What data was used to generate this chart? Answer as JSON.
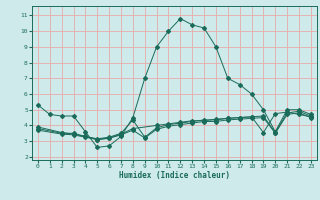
{
  "xlabel": "Humidex (Indice chaleur)",
  "bg_color": "#ceeaea",
  "grid_color": "#e8aaaa",
  "line_color": "#1a6b5a",
  "xlim": [
    -0.5,
    23.5
  ],
  "ylim": [
    1.8,
    11.6
  ],
  "xticks": [
    0,
    1,
    2,
    3,
    4,
    5,
    6,
    7,
    8,
    9,
    10,
    11,
    12,
    13,
    14,
    15,
    16,
    17,
    18,
    19,
    20,
    21,
    22,
    23
  ],
  "yticks": [
    2,
    3,
    4,
    5,
    6,
    7,
    8,
    9,
    10,
    11
  ],
  "line1_x": [
    0,
    1,
    2,
    3,
    4,
    5,
    6,
    7,
    8,
    9,
    10,
    11,
    12,
    13,
    14,
    15,
    16,
    17,
    18,
    19,
    20,
    21,
    22,
    23
  ],
  "line1_y": [
    5.3,
    4.7,
    4.6,
    4.6,
    3.6,
    2.6,
    2.7,
    3.3,
    4.5,
    7.0,
    9.0,
    10.0,
    10.8,
    10.4,
    10.2,
    9.0,
    7.0,
    6.6,
    6.0,
    5.0,
    3.6,
    5.0,
    5.0,
    4.7
  ],
  "line2_x": [
    0,
    2,
    3,
    4,
    5,
    6,
    7,
    8,
    9,
    10,
    11,
    12,
    13,
    14,
    15,
    16,
    17,
    18,
    19,
    20,
    21,
    22,
    23
  ],
  "line2_y": [
    3.9,
    3.55,
    3.45,
    3.3,
    3.15,
    3.25,
    3.5,
    4.35,
    3.25,
    3.85,
    4.05,
    4.15,
    4.25,
    4.35,
    4.35,
    4.45,
    4.5,
    4.55,
    4.6,
    3.55,
    4.8,
    4.9,
    4.6
  ],
  "line3_x": [
    0,
    2,
    3,
    4,
    5,
    6,
    7,
    8,
    10,
    11,
    12,
    13,
    14,
    15,
    16,
    17,
    18,
    19,
    20,
    21,
    22,
    23
  ],
  "line3_y": [
    3.8,
    3.5,
    3.5,
    3.3,
    3.1,
    3.2,
    3.45,
    3.8,
    4.0,
    4.1,
    4.2,
    4.3,
    4.3,
    4.4,
    4.45,
    4.5,
    4.55,
    3.55,
    4.75,
    4.85,
    4.7,
    4.55
  ],
  "line4_x": [
    0,
    2,
    3,
    4,
    5,
    6,
    7,
    8,
    9,
    10,
    11,
    12,
    13,
    14,
    15,
    16,
    17,
    18,
    19,
    20,
    21,
    22,
    23
  ],
  "line4_y": [
    3.7,
    3.45,
    3.4,
    3.25,
    3.1,
    3.18,
    3.4,
    3.7,
    3.2,
    3.75,
    3.95,
    4.05,
    4.15,
    4.25,
    4.25,
    4.35,
    4.4,
    4.45,
    4.5,
    3.5,
    4.7,
    4.8,
    4.5
  ]
}
